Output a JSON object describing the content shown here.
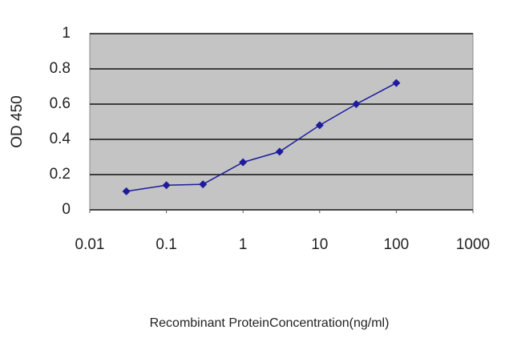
{
  "chart_data": {
    "type": "line",
    "xlabel": "Recombinant ProteinConcentration(ng/ml)",
    "ylabel": "OD 450",
    "x": [
      0.03,
      0.1,
      0.3,
      1,
      3,
      10,
      30,
      100
    ],
    "values": [
      0.105,
      0.14,
      0.145,
      0.27,
      0.33,
      0.48,
      0.6,
      0.72
    ],
    "color": "#1c1c9c",
    "plot_background": "#c4c4c4",
    "xscale": "log",
    "xlim": [
      0.01,
      1000
    ],
    "xticks": [
      0.01,
      0.1,
      1,
      10,
      100,
      1000
    ],
    "ylim": [
      0,
      1
    ],
    "yticks": [
      0,
      0.2,
      0.4,
      0.6,
      0.8,
      1
    ],
    "grid": true
  }
}
